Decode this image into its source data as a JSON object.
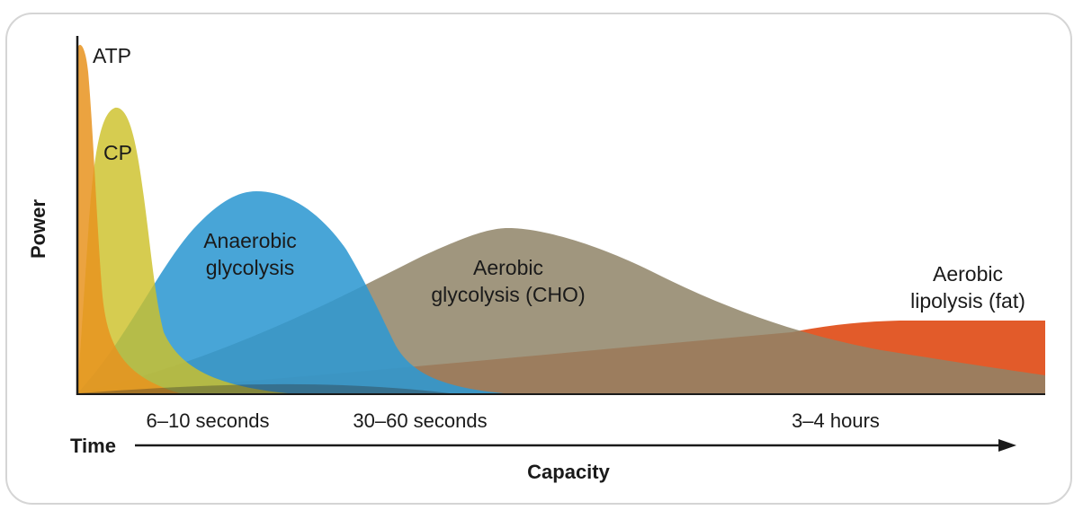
{
  "diagram": {
    "y_axis_label": "Power",
    "x_axis_time_label": "Time",
    "x_axis_capacity_label": "Capacity",
    "time_markers": [
      "6–10 seconds",
      "30–60 seconds",
      "3–4 hours"
    ],
    "systems": [
      {
        "id": "atp",
        "lines": [
          "ATP"
        ],
        "color": "#e8931e"
      },
      {
        "id": "cp",
        "lines": [
          "CP"
        ],
        "color": "#cdc12a"
      },
      {
        "id": "anaerobic",
        "lines": [
          "Anaerobic",
          "glycolysis"
        ],
        "color": "#2f99d1"
      },
      {
        "id": "aerobic-cho",
        "lines": [
          "Aerobic",
          "glycolysis (CHO)"
        ],
        "color": "#8f8467"
      },
      {
        "id": "aerobic-fat",
        "lines": [
          "Aerobic",
          "lipolysis (fat)"
        ],
        "color": "#e0521f"
      }
    ]
  }
}
